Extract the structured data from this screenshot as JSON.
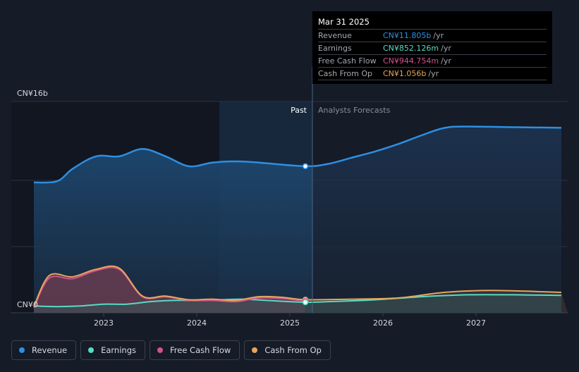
{
  "chart_data": {
    "type": "line",
    "x_ticks": [
      "2023",
      "2024",
      "2025",
      "2026",
      "2027"
    ],
    "y_ticks": [
      "CN¥16b",
      "CN¥0"
    ],
    "ylim": [
      0,
      16
    ],
    "regions": {
      "past_label": "Past",
      "forecast_label": "Analysts Forecasts"
    },
    "series": [
      {
        "name": "Revenue",
        "color": "#2d8fe2",
        "points": [
          [
            "2022-04",
            10.5
          ],
          [
            "2022-07",
            10.6
          ],
          [
            "2022-09",
            11.6
          ],
          [
            "2022-12",
            12.6
          ],
          [
            "2023-03",
            12.6
          ],
          [
            "2023-06",
            13.2
          ],
          [
            "2023-09",
            12.6
          ],
          [
            "2023-12",
            11.8
          ],
          [
            "2024-03",
            12.1
          ],
          [
            "2024-06",
            12.2
          ],
          [
            "2024-09",
            12.1
          ],
          [
            "2025-03",
            11.805
          ],
          [
            "2025-06",
            12.0
          ],
          [
            "2025-09",
            12.5
          ],
          [
            "2025-12",
            13.0
          ],
          [
            "2026-03",
            13.6
          ],
          [
            "2026-06",
            14.3
          ],
          [
            "2026-09",
            14.9
          ],
          [
            "2026-12",
            15.0
          ],
          [
            "2027-06",
            14.95
          ],
          [
            "2027-12",
            14.9
          ]
        ]
      },
      {
        "name": "Earnings",
        "color": "#57dbc4",
        "points": [
          [
            "2022-04",
            0.55
          ],
          [
            "2022-07",
            0.5
          ],
          [
            "2022-10",
            0.55
          ],
          [
            "2023-01",
            0.7
          ],
          [
            "2023-04",
            0.7
          ],
          [
            "2023-07",
            0.9
          ],
          [
            "2023-10",
            1.0
          ],
          [
            "2024-01",
            1.0
          ],
          [
            "2024-04",
            1.05
          ],
          [
            "2024-07",
            1.1
          ],
          [
            "2024-10",
            1.0
          ],
          [
            "2025-03",
            0.852
          ],
          [
            "2025-06",
            0.9
          ],
          [
            "2025-12",
            1.05
          ],
          [
            "2026-06",
            1.3
          ],
          [
            "2026-12",
            1.45
          ],
          [
            "2027-06",
            1.45
          ],
          [
            "2027-12",
            1.4
          ]
        ]
      },
      {
        "name": "Free Cash Flow",
        "color": "#d2538d",
        "points": [
          [
            "2022-04",
            0.4
          ],
          [
            "2022-06",
            2.8
          ],
          [
            "2022-09",
            2.75
          ],
          [
            "2022-12",
            3.4
          ],
          [
            "2023-03",
            3.5
          ],
          [
            "2023-06",
            1.3
          ],
          [
            "2023-09",
            1.3
          ],
          [
            "2023-12",
            1.0
          ],
          [
            "2024-03",
            1.0
          ],
          [
            "2024-06",
            0.9
          ],
          [
            "2024-09",
            1.2
          ],
          [
            "2024-12",
            1.15
          ],
          [
            "2025-03",
            0.945
          ]
        ]
      },
      {
        "name": "Cash From Op",
        "color": "#e8a55b",
        "points": [
          [
            "2022-04",
            0.5
          ],
          [
            "2022-06",
            3.0
          ],
          [
            "2022-09",
            2.9
          ],
          [
            "2022-12",
            3.5
          ],
          [
            "2023-03",
            3.6
          ],
          [
            "2023-06",
            1.35
          ],
          [
            "2023-09",
            1.35
          ],
          [
            "2023-12",
            1.05
          ],
          [
            "2024-03",
            1.1
          ],
          [
            "2024-06",
            1.0
          ],
          [
            "2024-09",
            1.3
          ],
          [
            "2024-12",
            1.25
          ],
          [
            "2025-03",
            1.056
          ],
          [
            "2025-09",
            1.1
          ],
          [
            "2026-03",
            1.2
          ],
          [
            "2026-09",
            1.65
          ],
          [
            "2027-03",
            1.8
          ],
          [
            "2027-12",
            1.65
          ]
        ]
      }
    ],
    "tooltip": {
      "date": "Mar 31 2025",
      "rows": [
        {
          "label": "Revenue",
          "value": "CN¥11.805b",
          "unit": "/yr",
          "color": "#2d8fe2"
        },
        {
          "label": "Earnings",
          "value": "CN¥852.126m",
          "unit": "/yr",
          "color": "#57dbc4"
        },
        {
          "label": "Free Cash Flow",
          "value": "CN¥944.754m",
          "unit": "/yr",
          "color": "#d2538d"
        },
        {
          "label": "Cash From Op",
          "value": "CN¥1.056b",
          "unit": "/yr",
          "color": "#e8a55b"
        }
      ]
    },
    "legend": [
      {
        "label": "Revenue",
        "color": "#2d8fe2"
      },
      {
        "label": "Earnings",
        "color": "#57dbc4"
      },
      {
        "label": "Free Cash Flow",
        "color": "#d2538d"
      },
      {
        "label": "Cash From Op",
        "color": "#e8a55b"
      }
    ]
  }
}
